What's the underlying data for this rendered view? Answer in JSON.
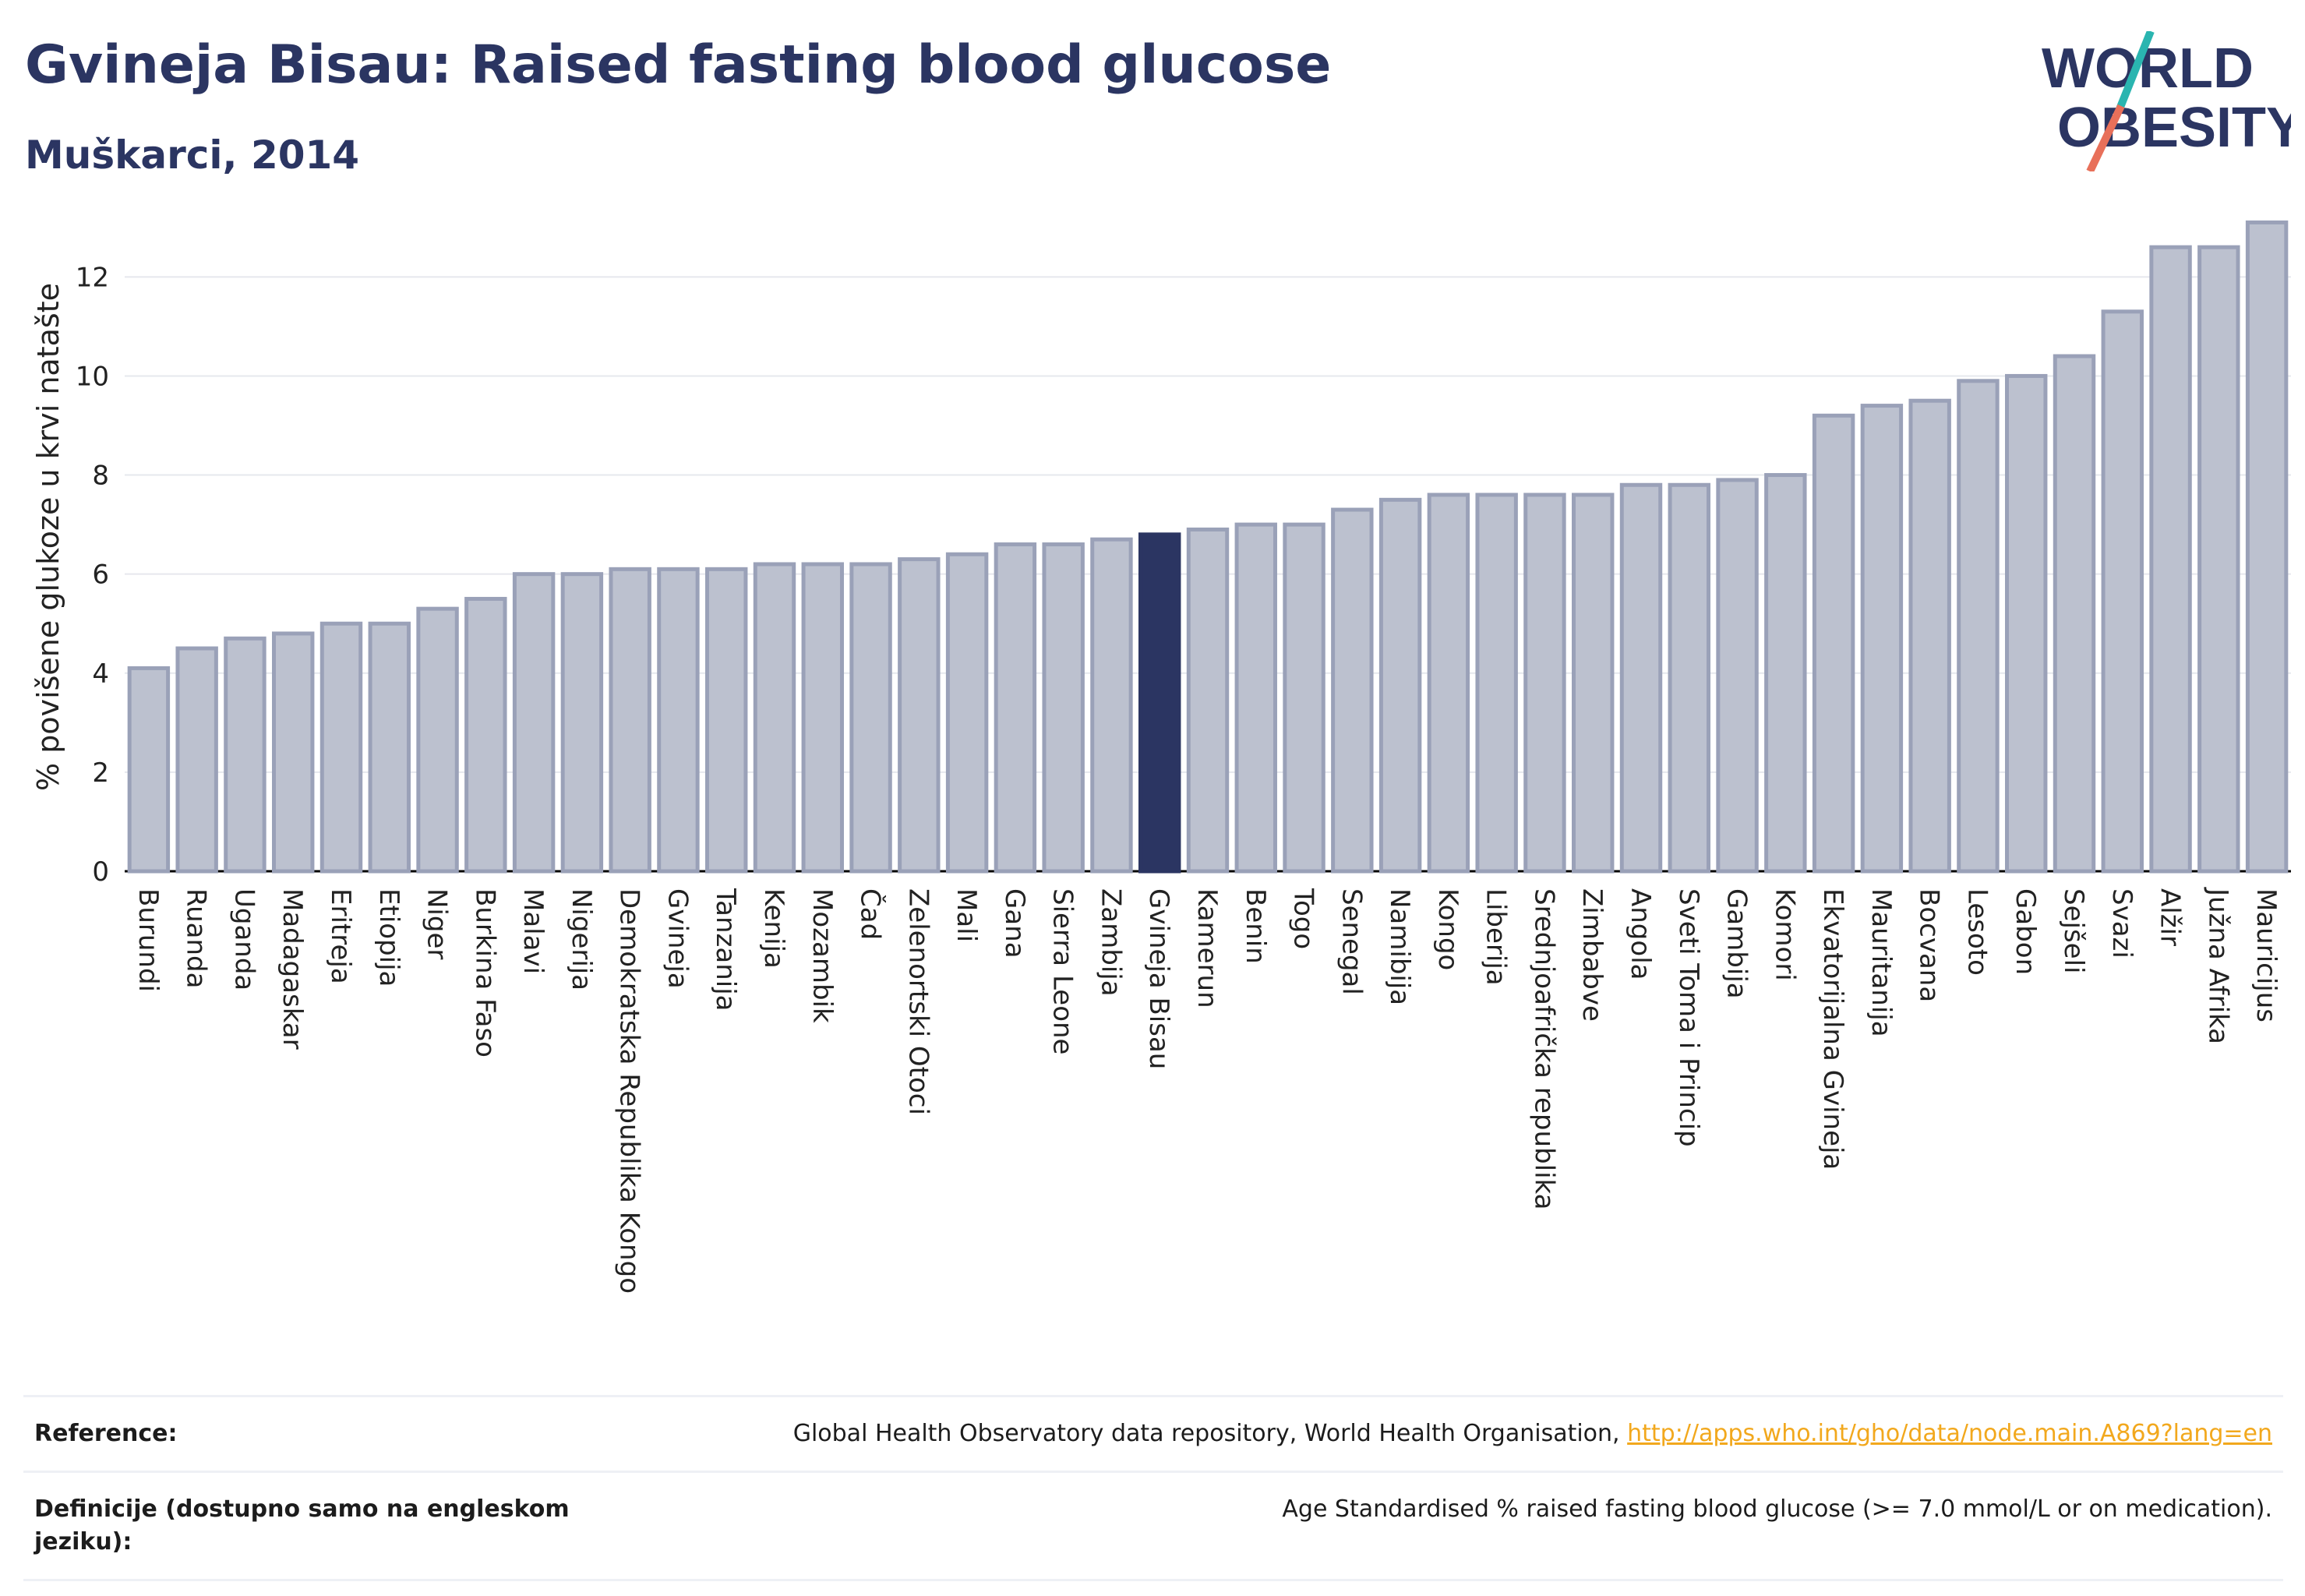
{
  "header": {
    "title": "Gvineja Bisau: Raised fasting blood glucose",
    "subtitle": "Muškarci, 2014"
  },
  "logo": {
    "line1": "WORLD",
    "line2": "OBESITY",
    "text_color": "#2b3562",
    "slash_teal": "#2ab5b0",
    "slash_red": "#e8705a"
  },
  "chart_data": {
    "type": "bar",
    "ylabel": "% povišene glukoze u krvi natašte",
    "xlabel": "",
    "ylim": [
      0,
      13.5
    ],
    "yticks": [
      0,
      2,
      4,
      6,
      8,
      10,
      12
    ],
    "grid": true,
    "highlight": "Gvineja Bisau",
    "colors": {
      "bar": "#bcc1cf",
      "bar_edge": "#9aa1b8",
      "highlight": "#2b3562"
    },
    "categories": [
      "Burundi",
      "Ruanda",
      "Uganda",
      "Madagaskar",
      "Eritreja",
      "Etiopija",
      "Niger",
      "Burkina Faso",
      "Malavi",
      "Nigerija",
      "Demokratska Republika Kongo",
      "Gvineja",
      "Tanzanija",
      "Kenija",
      "Mozambik",
      "Čad",
      "Zelenortski Otoci",
      "Mali",
      "Gana",
      "Sierra Leone",
      "Zambija",
      "Gvineja Bisau",
      "Kamerun",
      "Benin",
      "Togo",
      "Senegal",
      "Namibija",
      "Kongo",
      "Liberija",
      "Srednjoafrička republika",
      "Zimbabve",
      "Angola",
      "Sveti Toma i Princip",
      "Gambija",
      "Komori",
      "Ekvatorijalna Gvineja",
      "Mauritanija",
      "Bocvana",
      "Lesoto",
      "Gabon",
      "Sejšeli",
      "Svazi",
      "Alžir",
      "Južna Afrika",
      "Mauricijus"
    ],
    "values": [
      4.1,
      4.5,
      4.7,
      4.8,
      5.0,
      5.0,
      5.3,
      5.5,
      6.0,
      6.0,
      6.1,
      6.1,
      6.1,
      6.2,
      6.2,
      6.2,
      6.3,
      6.4,
      6.6,
      6.6,
      6.7,
      6.8,
      6.9,
      7.0,
      7.0,
      7.3,
      7.5,
      7.6,
      7.6,
      7.6,
      7.6,
      7.8,
      7.8,
      7.9,
      8.0,
      9.2,
      9.4,
      9.5,
      9.9,
      10.0,
      10.4,
      11.3,
      12.6,
      12.6,
      13.1
    ]
  },
  "table": {
    "reference_label": "Reference:",
    "reference_text": "Global Health Observatory data repository, World Health Organisation,",
    "reference_link": "http://apps.who.int/gho/data/node.main.A869?lang=en",
    "definition_label": "Definicije (dostupno samo na engleskom jeziku):",
    "definition_text": "Age Standardised % raised fasting blood glucose (>= 7.0 mmol/L or on medication)."
  }
}
